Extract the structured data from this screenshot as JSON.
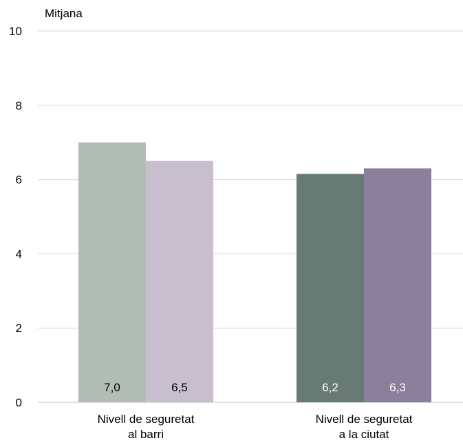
{
  "chart_data": {
    "type": "bar",
    "ylabel": "Mitjana",
    "ylim": [
      0,
      10
    ],
    "yticks": [
      "0",
      "2",
      "4",
      "6",
      "8",
      "10"
    ],
    "grid": true,
    "categories": [
      [
        "Nivell de seguretat",
        "al barri"
      ],
      [
        "Nivell de seguretat",
        "a la ciutat"
      ]
    ],
    "bars": [
      {
        "category": 0,
        "value": 7.0,
        "label": "7,0",
        "color": "#b1bdb5",
        "label_color": "#000000"
      },
      {
        "category": 0,
        "value": 6.5,
        "label": "6,5",
        "color": "#c7bfcd",
        "label_color": "#000000"
      },
      {
        "category": 1,
        "value": 6.15,
        "label": "6,2",
        "color": "#677b74",
        "label_color": "#ffffff"
      },
      {
        "category": 1,
        "value": 6.3,
        "label": "6,3",
        "color": "#8b7f9c",
        "label_color": "#ffffff"
      }
    ],
    "colors": {
      "grid": "#d9d9d9",
      "axis": "#bfbfbf"
    }
  }
}
